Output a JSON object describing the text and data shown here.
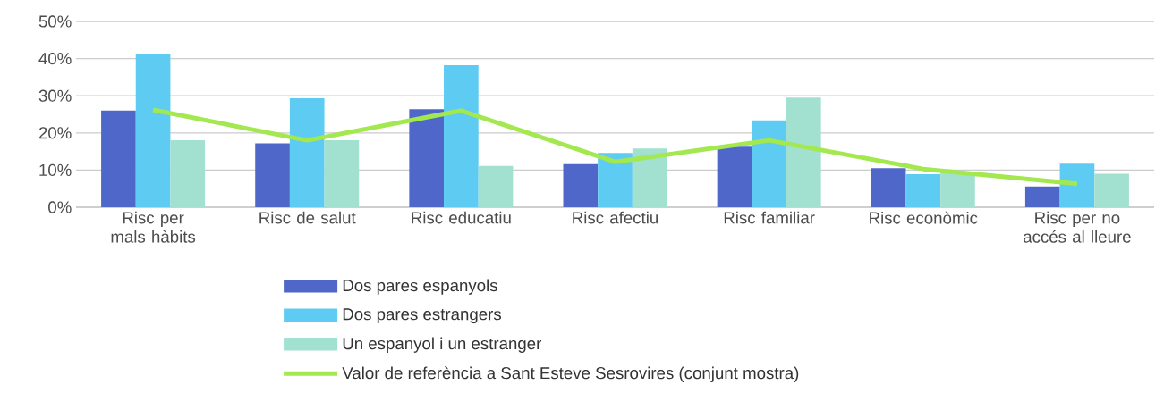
{
  "chart_data": {
    "type": "bar",
    "categories": [
      "Risc per mals hàbits",
      "Risc de salut",
      "Risc educatiu",
      "Risc afectiu",
      "Risc familiar",
      "Risc econòmic",
      "Risc per no accés al lleure"
    ],
    "series": [
      {
        "name": "Dos pares espanyols",
        "color": "#4f67c8",
        "values": [
          26,
          17.2,
          26.4,
          11.6,
          16.3,
          10.5,
          5.6
        ]
      },
      {
        "name": "Dos pares estrangers",
        "color": "#5ecbf2",
        "values": [
          41.1,
          29.3,
          38.2,
          14.6,
          23.4,
          8.9,
          11.7
        ]
      },
      {
        "name": "Un espanyol i un estranger",
        "color": "#a2e0d0",
        "values": [
          18,
          18,
          11.1,
          15.8,
          29.5,
          9.5,
          9
        ]
      },
      {
        "name": "Valor de referència a Sant Esteve Sesrovires (conjunt mostra)",
        "type": "line",
        "color": "#a3e84f",
        "values": [
          26.2,
          18,
          26,
          12.2,
          18,
          10.3,
          6.3
        ]
      }
    ],
    "ylim": [
      0,
      50
    ],
    "yticks": [
      {
        "value": 0,
        "label": "0%"
      },
      {
        "value": 10,
        "label": "10%"
      },
      {
        "value": 20,
        "label": "20%"
      },
      {
        "value": 30,
        "label": "30%"
      },
      {
        "value": 40,
        "label": "40%"
      },
      {
        "value": 50,
        "label": "50%"
      }
    ],
    "grid": "y",
    "legend": "bottom"
  }
}
